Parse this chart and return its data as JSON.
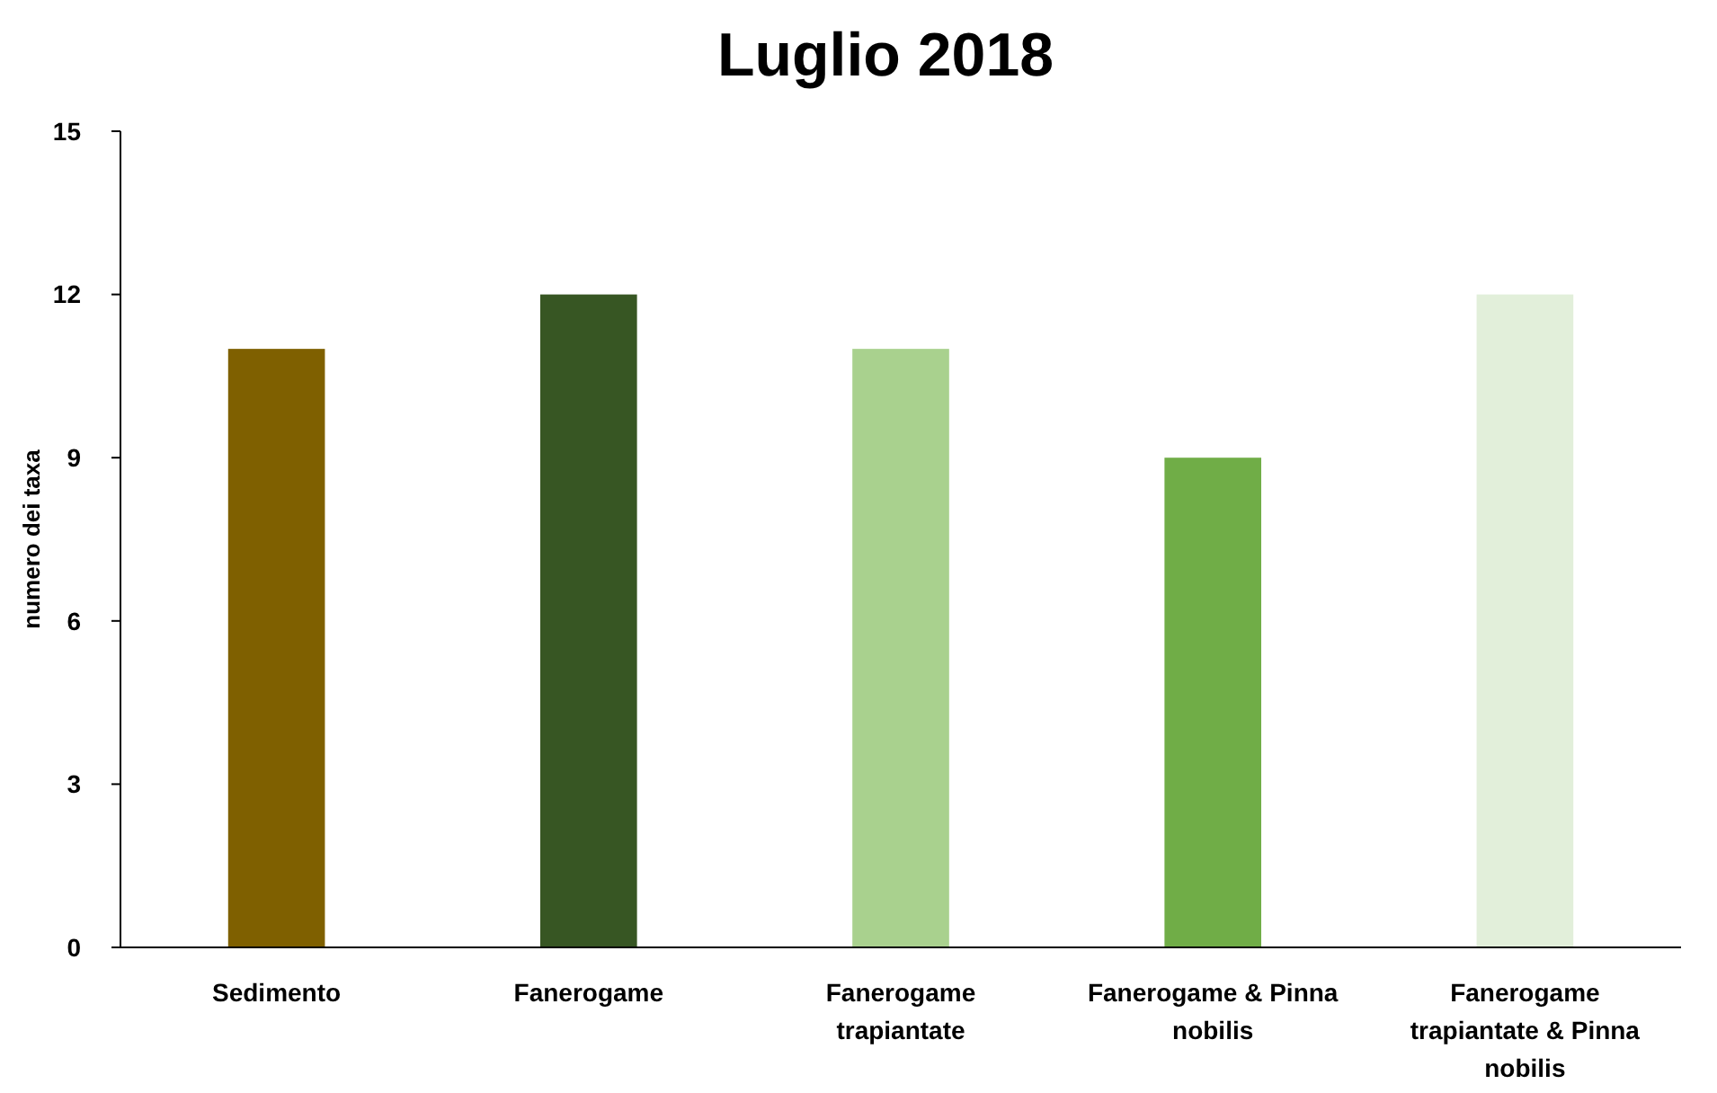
{
  "chart_data": {
    "type": "bar",
    "title": "Luglio 2018",
    "ylabel": "numero dei taxa",
    "categories": [
      "Sedimento",
      "Fanerogame",
      "Fanerogame trapiantate",
      "Fanerogame & Pinna nobilis",
      "Fanerogame trapiantate & Pinna nobilis"
    ],
    "values": [
      11,
      12,
      11,
      9,
      12
    ],
    "colors": [
      "#7f6000",
      "#375623",
      "#a9d18e",
      "#70ad47",
      "#e2efda"
    ],
    "ylim": [
      0,
      15
    ],
    "yticks": [
      0,
      3,
      6,
      9,
      12,
      15
    ],
    "grid": false
  }
}
